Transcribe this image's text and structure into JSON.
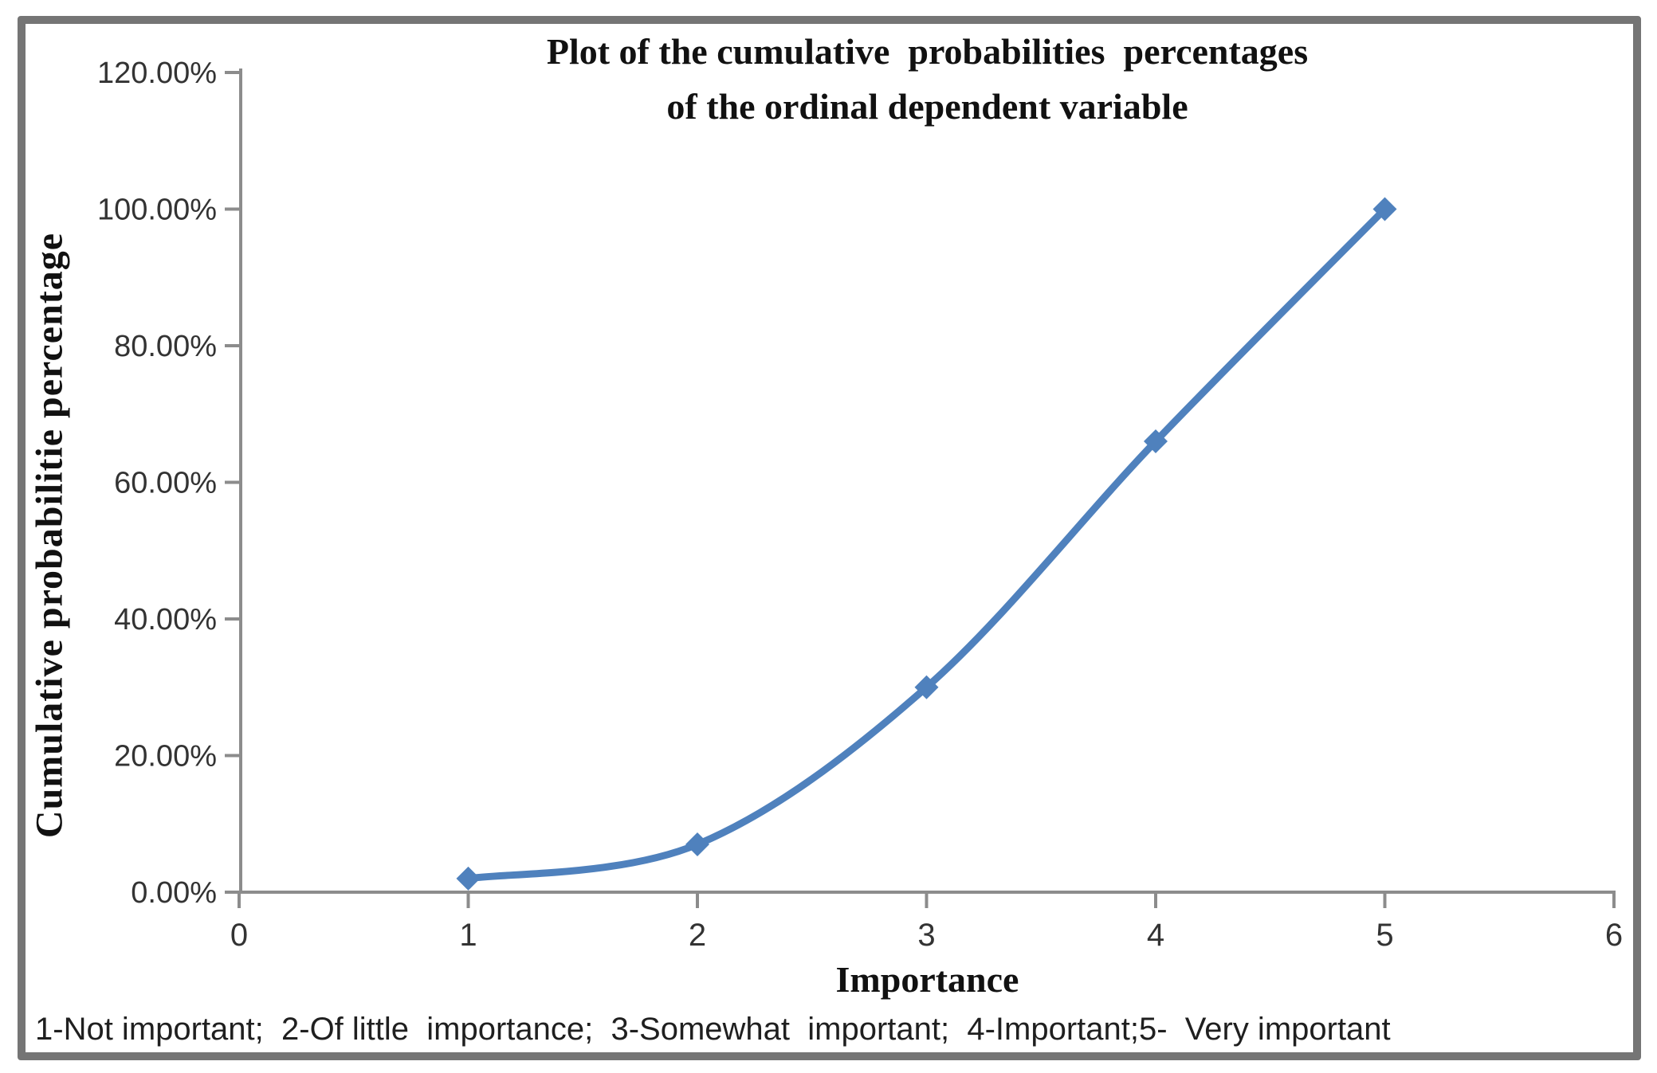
{
  "chart_data": {
    "type": "line",
    "title_lines": [
      "Plot of the cumulative  probabilities  percentages",
      "of the ordinal dependent variable"
    ],
    "xlabel": "Importance",
    "ylabel": "Cumulative probabilitie percentage",
    "x": [
      1,
      2,
      3,
      4,
      5
    ],
    "y_percent": [
      2,
      7,
      30,
      66,
      100
    ],
    "xlim": [
      0,
      6
    ],
    "ylim_percent": [
      0,
      120
    ],
    "x_tick_values": [
      0,
      1,
      2,
      3,
      4,
      5,
      6
    ],
    "x_tick_labels": [
      "0",
      "1",
      "2",
      "3",
      "4",
      "5",
      "6"
    ],
    "y_tick_values": [
      0,
      20,
      40,
      60,
      80,
      100,
      120
    ],
    "y_tick_labels": [
      "0.00%",
      "20.00%",
      "40.00%",
      "60.00%",
      "80.00%",
      "100.00%",
      "120.00%"
    ],
    "grid": false,
    "legend": "none",
    "smooth": true,
    "marker": "diamond",
    "line_color": "#4F81BD",
    "marker_color": "#4F81BD",
    "axis_color": "#8C8C8C",
    "tick_label_color": "#333333",
    "frame_color": "#757575",
    "footnote": "1-Not important;  2-Of little  importance;  3-Somewhat  important;  4-Important;5-  Very important"
  }
}
